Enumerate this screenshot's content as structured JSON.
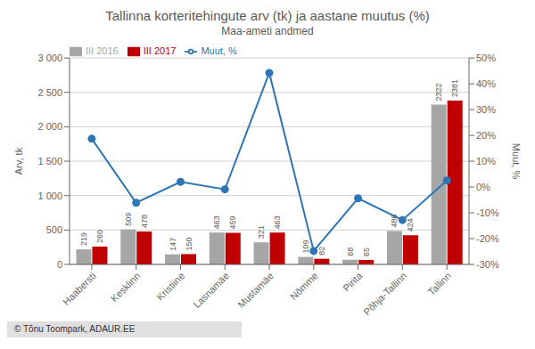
{
  "chart_data": {
    "type": "bar",
    "title": "Tallinna korteritehingute arv (tk) ja aastane muutus (%)",
    "subtitle": "Maa-ameti andmed",
    "ylabel": "Arv, tk",
    "y2label": "Muut, %",
    "annotations": [
      "© Tõnu Toompark, ADAUR.EE"
    ],
    "categories": [
      "Haabersti",
      "Kesklinn",
      "Kristiine",
      "Lasnamäe",
      "Mustamäe",
      "Nõmme",
      "Pirita",
      "Põhja-Tallinn",
      "Tallinn"
    ],
    "series": [
      {
        "name": "III 2016",
        "type": "bar",
        "color": "#a6a6a6",
        "data_labels": true,
        "values": [
          219,
          509,
          147,
          463,
          321,
          109,
          68,
          486,
          2322
        ]
      },
      {
        "name": "III 2017",
        "type": "bar",
        "color": "#c00000",
        "data_labels": true,
        "values": [
          260,
          478,
          150,
          459,
          463,
          82,
          65,
          424,
          2381
        ]
      },
      {
        "name": "Muut, %",
        "type": "line",
        "axis": "y2",
        "color": "#2e75b6",
        "marker": "circle",
        "values": [
          18.7,
          -6.1,
          2.0,
          -0.9,
          44.2,
          -24.8,
          -4.4,
          -12.8,
          2.5
        ]
      }
    ],
    "ylim": [
      0,
      3000
    ],
    "yticks": [
      0,
      500,
      {
        "value": 1000,
        "label": "1 000"
      },
      {
        "value": 1500,
        "label": "1 500"
      },
      {
        "value": 2000,
        "label": "2 000"
      },
      {
        "value": 2500,
        "label": "2 500"
      },
      {
        "value": 3000,
        "label": "3 000"
      }
    ],
    "y2lim": [
      -30,
      50
    ],
    "y2ticks": [
      {
        "value": -30,
        "label": "-30%"
      },
      {
        "value": -20,
        "label": "-20%"
      },
      {
        "value": -10,
        "label": "-10%"
      },
      {
        "value": 0,
        "label": "0%"
      },
      {
        "value": 10,
        "label": "10%"
      },
      {
        "value": 20,
        "label": "20%"
      },
      {
        "value": 30,
        "label": "30%"
      },
      {
        "value": 40,
        "label": "40%"
      },
      {
        "value": 50,
        "label": "50%"
      }
    ],
    "grid": true,
    "legend": "upper left"
  }
}
